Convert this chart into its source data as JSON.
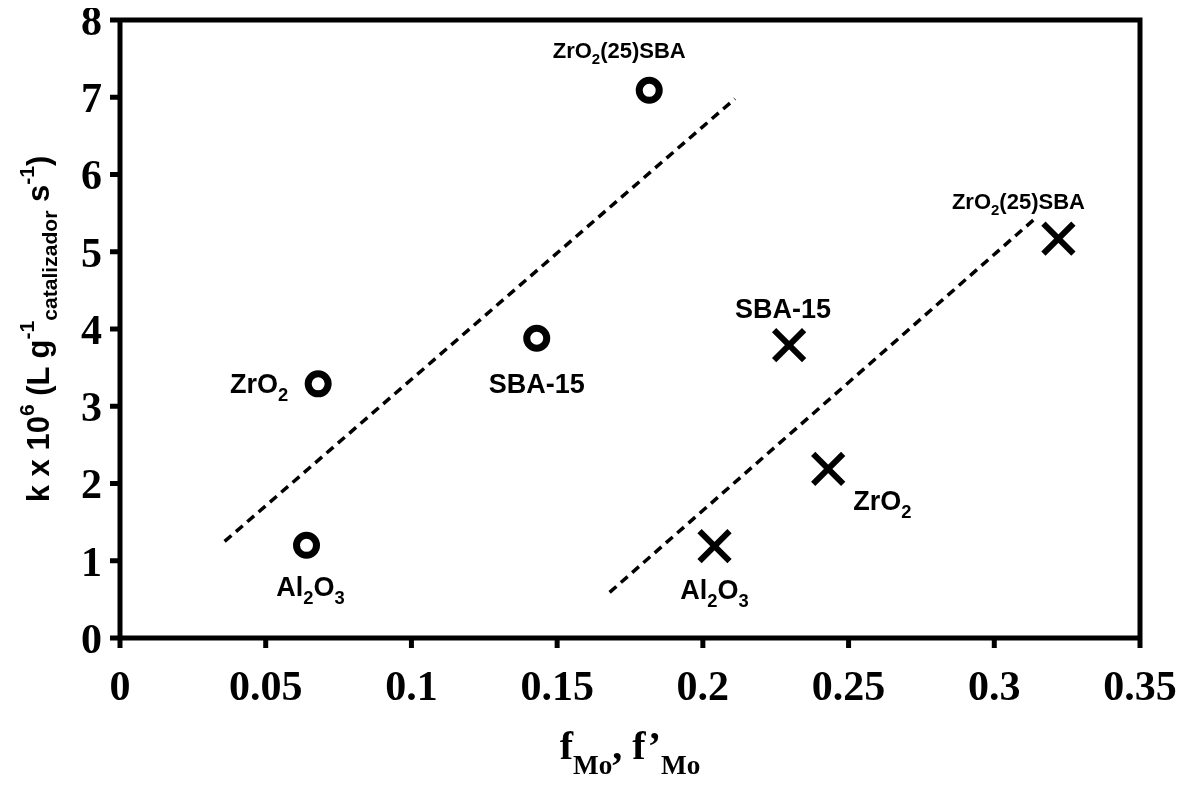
{
  "chart_data": {
    "type": "scatter",
    "xlabel": "f$_{Mo}$, f’$_{Mo}$",
    "ylabel": "k x 10$^{6}$ (L g$^{-1}$$_{catalizador}$ s$^{-1}$)",
    "xlim": [
      0,
      0.35
    ],
    "xticks": [
      0,
      0.05,
      0.1,
      0.15,
      0.2,
      0.25,
      0.3,
      0.35
    ],
    "ylim": [
      0,
      8
    ],
    "yticks": [
      0,
      1,
      2,
      3,
      4,
      5,
      6,
      7,
      8
    ],
    "grid": false,
    "series": [
      {
        "marker": "circle",
        "color": "#000000",
        "x": [
          0.064,
          0.068,
          0.143,
          0.1816
        ],
        "values": [
          1.2,
          3.29,
          3.88,
          7.09
        ]
      },
      {
        "marker": "cross",
        "color": "#000000",
        "x": [
          0.204,
          0.2296,
          0.243,
          0.322
        ],
        "values": [
          1.19,
          3.79,
          2.19,
          5.17
        ]
      },
      {
        "type": "line",
        "line_style": "dashed",
        "marker": "none",
        "color": "#000000",
        "x": [
          0.0359,
          0.211
        ],
        "values": [
          1.25,
          6.98
        ]
      },
      {
        "type": "line",
        "line_style": "dashed",
        "marker": "none",
        "color": "#000000",
        "x": [
          0.168,
          0.3134
        ],
        "values": [
          0.59,
          5.41
        ]
      }
    ],
    "annotations": [
      {
        "text": "Al$_{2}$O$_{3}$",
        "x": 0.064,
        "y": 1.2
      },
      {
        "text": "ZrO$_{2}$",
        "x": 0.068,
        "y": 3.29
      },
      {
        "text": "SBA-15",
        "x": 0.143,
        "y": 3.88
      },
      {
        "text": "ZrO$_{2}$(25)SBA",
        "x": 0.1816,
        "y": 7.09
      },
      {
        "text": "Al$_{2}$O$_{3}$",
        "x": 0.204,
        "y": 1.19
      },
      {
        "text": "SBA-15",
        "x": 0.2296,
        "y": 3.79
      },
      {
        "text": "ZrO$_{2}$",
        "x": 0.243,
        "y": 2.19
      },
      {
        "text": "ZrO$_{2}$(25)SBA",
        "x": 0.322,
        "y": 5.17
      }
    ]
  }
}
